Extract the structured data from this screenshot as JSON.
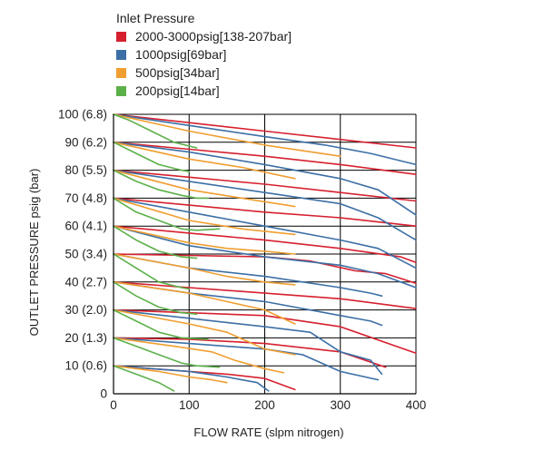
{
  "chart_data": {
    "type": "line",
    "legend_title": "Inlet Pressure",
    "legend_placement": "top-left",
    "xlabel": "FLOW RATE (slpm nitrogen)",
    "ylabel": "OUTLET PRESSURE psig (bar)",
    "xlim": [
      0,
      400
    ],
    "ylim": [
      0,
      100
    ],
    "x_ticks": [
      0,
      100,
      200,
      300,
      400
    ],
    "x_tick_labels": [
      "0",
      "100",
      "200",
      "300",
      "400"
    ],
    "y_ticks": [
      0,
      10,
      20,
      30,
      40,
      50,
      60,
      70,
      80,
      90,
      100
    ],
    "y_tick_labels": [
      "0",
      "10 (0.6)",
      "20 (1.3)",
      "30 (2.0)",
      "40 (2.7)",
      "50 (3.4)",
      "60 (4.1)",
      "70 (4.8)",
      "80 (5.5)",
      "90 (6.2)",
      "100 (6.8)"
    ],
    "grid": true,
    "series": [
      {
        "name": "2000-3000psig[138-207bar]",
        "color": "#d6202f",
        "curves": [
          [
            [
              0,
              100
            ],
            [
              100,
              97
            ],
            [
              200,
              94
            ],
            [
              300,
              91
            ],
            [
              400,
              88
            ]
          ],
          [
            [
              0,
              90
            ],
            [
              100,
              87.5
            ],
            [
              200,
              85
            ],
            [
              300,
              82
            ],
            [
              400,
              78.5
            ]
          ],
          [
            [
              0,
              80
            ],
            [
              100,
              77.5
            ],
            [
              200,
              75
            ],
            [
              300,
              72
            ],
            [
              400,
              69
            ]
          ],
          [
            [
              0,
              70
            ],
            [
              100,
              67.5
            ],
            [
              200,
              65
            ],
            [
              300,
              63
            ],
            [
              400,
              60
            ]
          ],
          [
            [
              0,
              60
            ],
            [
              100,
              57.5
            ],
            [
              200,
              55
            ],
            [
              300,
              52
            ],
            [
              380,
              49
            ],
            [
              400,
              47
            ]
          ],
          [
            [
              0,
              50
            ],
            [
              100,
              49.5
            ],
            [
              200,
              49
            ],
            [
              260,
              47.5
            ],
            [
              320,
              44
            ],
            [
              360,
              43
            ],
            [
              400,
              39.5
            ]
          ],
          [
            [
              0,
              40
            ],
            [
              100,
              38
            ],
            [
              200,
              36
            ],
            [
              300,
              34
            ],
            [
              400,
              30.5
            ]
          ],
          [
            [
              0,
              30
            ],
            [
              100,
              29
            ],
            [
              200,
              28
            ],
            [
              300,
              24
            ],
            [
              400,
              14.5
            ]
          ],
          [
            [
              0,
              20
            ],
            [
              100,
              19.5
            ],
            [
              200,
              18
            ],
            [
              300,
              15
            ],
            [
              360,
              9.5
            ]
          ],
          [
            [
              0,
              10
            ],
            [
              100,
              8
            ],
            [
              150,
              7
            ],
            [
              200,
              5.5
            ],
            [
              240,
              1.5
            ]
          ]
        ]
      },
      {
        "name": "1000psig[69bar]",
        "color": "#3c6fa5",
        "curves": [
          [
            [
              0,
              100
            ],
            [
              100,
              96
            ],
            [
              200,
              92
            ],
            [
              280,
              89
            ],
            [
              340,
              86
            ],
            [
              400,
              82
            ]
          ],
          [
            [
              0,
              90
            ],
            [
              100,
              86.5
            ],
            [
              200,
              82
            ],
            [
              300,
              77
            ],
            [
              350,
              73
            ],
            [
              400,
              64
            ]
          ],
          [
            [
              0,
              80
            ],
            [
              100,
              76
            ],
            [
              200,
              72
            ],
            [
              300,
              68
            ],
            [
              350,
              63
            ],
            [
              400,
              55
            ]
          ],
          [
            [
              0,
              70
            ],
            [
              100,
              65
            ],
            [
              200,
              60
            ],
            [
              300,
              55
            ],
            [
              350,
              52
            ],
            [
              400,
              45
            ]
          ],
          [
            [
              0,
              60
            ],
            [
              100,
              53
            ],
            [
              200,
              49
            ],
            [
              300,
              46
            ],
            [
              350,
              43
            ],
            [
              400,
              38
            ]
          ],
          [
            [
              0,
              50
            ],
            [
              100,
              45
            ],
            [
              200,
              42
            ],
            [
              300,
              38
            ],
            [
              340,
              36
            ],
            [
              355,
              35
            ]
          ],
          [
            [
              0,
              40
            ],
            [
              100,
              36
            ],
            [
              200,
              33
            ],
            [
              300,
              28
            ],
            [
              340,
              26
            ],
            [
              355,
              24.5
            ]
          ],
          [
            [
              0,
              30
            ],
            [
              100,
              27
            ],
            [
              200,
              24
            ],
            [
              260,
              22
            ],
            [
              300,
              15
            ],
            [
              340,
              12
            ],
            [
              355,
              7
            ]
          ],
          [
            [
              0,
              20
            ],
            [
              100,
              18
            ],
            [
              200,
              16
            ],
            [
              250,
              14
            ],
            [
              300,
              8
            ],
            [
              350,
              5
            ]
          ],
          [
            [
              0,
              10
            ],
            [
              100,
              8
            ],
            [
              150,
              6
            ],
            [
              190,
              4
            ],
            [
              205,
              1
            ]
          ]
        ]
      },
      {
        "name": "500psig[34bar]",
        "color": "#f09e30",
        "curves": [
          [
            [
              0,
              100
            ],
            [
              100,
              94
            ],
            [
              200,
              89
            ],
            [
              300,
              85
            ]
          ],
          [
            [
              0,
              90
            ],
            [
              100,
              84
            ],
            [
              170,
              81
            ],
            [
              240,
              77
            ]
          ],
          [
            [
              0,
              80
            ],
            [
              100,
              73
            ],
            [
              170,
              70
            ],
            [
              240,
              67
            ]
          ],
          [
            [
              0,
              70
            ],
            [
              100,
              62
            ],
            [
              170,
              59
            ],
            [
              240,
              57
            ]
          ],
          [
            [
              0,
              60
            ],
            [
              100,
              54
            ],
            [
              150,
              52
            ],
            [
              200,
              51
            ],
            [
              240,
              50
            ]
          ],
          [
            [
              0,
              50
            ],
            [
              100,
              45
            ],
            [
              150,
              42
            ],
            [
              200,
              40
            ],
            [
              240,
              39
            ]
          ],
          [
            [
              0,
              40
            ],
            [
              100,
              36
            ],
            [
              150,
              33
            ],
            [
              200,
              30
            ],
            [
              240,
              25
            ]
          ],
          [
            [
              0,
              30
            ],
            [
              100,
              25
            ],
            [
              150,
              22
            ],
            [
              200,
              16
            ],
            [
              240,
              14
            ]
          ],
          [
            [
              0,
              20
            ],
            [
              80,
              17
            ],
            [
              130,
              15
            ],
            [
              160,
              12
            ],
            [
              200,
              9
            ],
            [
              225,
              7.5
            ]
          ],
          [
            [
              0,
              10
            ],
            [
              60,
              8
            ],
            [
              100,
              6
            ],
            [
              130,
              5
            ],
            [
              150,
              4
            ]
          ]
        ]
      },
      {
        "name": "200psig[14bar]",
        "color": "#5cb04a",
        "curves": [
          [
            [
              0,
              100
            ],
            [
              20,
              98
            ],
            [
              50,
              94
            ],
            [
              80,
              90
            ],
            [
              110,
              88
            ]
          ],
          [
            [
              0,
              90
            ],
            [
              30,
              86
            ],
            [
              60,
              82
            ],
            [
              90,
              80
            ],
            [
              100,
              79.5
            ]
          ],
          [
            [
              0,
              80
            ],
            [
              30,
              76
            ],
            [
              60,
              73
            ],
            [
              90,
              71
            ],
            [
              110,
              70
            ],
            [
              125,
              70
            ]
          ],
          [
            [
              0,
              70
            ],
            [
              30,
              65
            ],
            [
              60,
              62
            ],
            [
              90,
              59
            ],
            [
              110,
              58.5
            ],
            [
              140,
              59
            ]
          ],
          [
            [
              0,
              60
            ],
            [
              30,
              55
            ],
            [
              60,
              51
            ],
            [
              90,
              49
            ],
            [
              110,
              48.5
            ]
          ],
          [
            [
              0,
              50
            ],
            [
              30,
              45
            ],
            [
              60,
              40
            ],
            [
              90,
              38
            ],
            [
              100,
              37.5
            ]
          ],
          [
            [
              0,
              40
            ],
            [
              30,
              35
            ],
            [
              60,
              31
            ],
            [
              90,
              29
            ],
            [
              110,
              28.5
            ]
          ],
          [
            [
              0,
              30
            ],
            [
              30,
              26
            ],
            [
              60,
              22
            ],
            [
              90,
              20
            ],
            [
              125,
              19.5
            ]
          ],
          [
            [
              0,
              20
            ],
            [
              30,
              17
            ],
            [
              60,
              14
            ],
            [
              90,
              11
            ],
            [
              110,
              10
            ],
            [
              140,
              9.5
            ]
          ],
          [
            [
              0,
              10
            ],
            [
              30,
              7
            ],
            [
              60,
              4
            ],
            [
              80,
              1
            ]
          ]
        ]
      }
    ]
  }
}
